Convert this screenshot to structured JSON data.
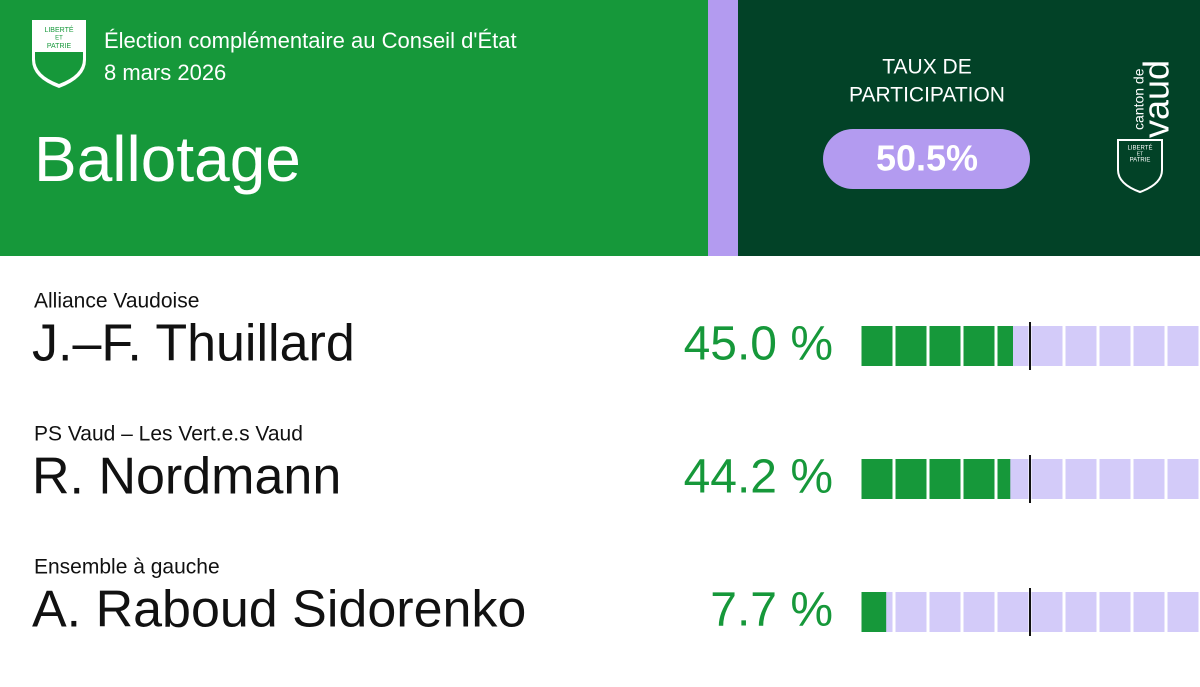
{
  "header": {
    "title": "Élection complémentaire au Conseil d'État",
    "date": "8 mars 2026",
    "result": "Ballotage"
  },
  "participation": {
    "label_1": "TAUX DE",
    "label_2": "PARTICIPATION",
    "value": "50.5%"
  },
  "logo": {
    "motto_1": "LIBERTÉ",
    "motto_2": "ET",
    "motto_3": "PATRIE",
    "brand_1": "canton de",
    "brand_2": "vaud"
  },
  "chart_data": {
    "type": "bar",
    "categories": [
      "J.–F. Thuillard",
      "R. Nordmann",
      "A. Raboud Sidorenko"
    ],
    "parties": [
      "Alliance Vaudoise",
      "PS Vaud – Les Vert.e.s Vaud",
      "Ensemble à gauche"
    ],
    "values": [
      45.0,
      44.2,
      7.7
    ],
    "value_labels": [
      "45.0 %",
      "44.2 %",
      "7.7 %"
    ],
    "color": "#16983a",
    "track_color": "#d3cbf9",
    "xlim": [
      0,
      100
    ],
    "xticks": [
      0,
      10,
      20,
      30,
      40,
      50,
      60,
      70,
      80,
      90,
      100
    ],
    "marker": 50
  }
}
